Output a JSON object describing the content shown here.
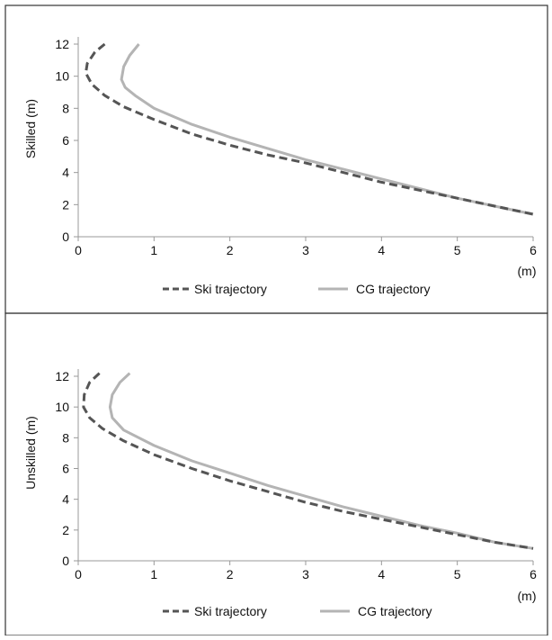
{
  "chart_data": [
    {
      "type": "line",
      "ylabel": "Skilled (m)",
      "xunit": "(m)",
      "xlim": [
        0,
        6
      ],
      "ylim": [
        0,
        12
      ],
      "xticks": [
        "0",
        "1",
        "2",
        "3",
        "4",
        "5",
        "6"
      ],
      "yticks": [
        "0",
        "2",
        "4",
        "6",
        "8",
        "10",
        "12"
      ],
      "legend_position": "bottom",
      "series": [
        {
          "name": "Ski trajectory",
          "style": "dashed",
          "color": "#555555",
          "points": [
            [
              0.35,
              12.0
            ],
            [
              0.22,
              11.5
            ],
            [
              0.12,
              10.8
            ],
            [
              0.1,
              10.2
            ],
            [
              0.18,
              9.5
            ],
            [
              0.35,
              8.8
            ],
            [
              0.6,
              8.1
            ],
            [
              1.0,
              7.3
            ],
            [
              1.5,
              6.4
            ],
            [
              2.0,
              5.7
            ],
            [
              2.5,
              5.1
            ],
            [
              3.0,
              4.6
            ],
            [
              3.5,
              4.0
            ],
            [
              4.0,
              3.4
            ],
            [
              4.5,
              2.9
            ],
            [
              5.0,
              2.4
            ],
            [
              5.5,
              1.9
            ],
            [
              6.0,
              1.4
            ]
          ]
        },
        {
          "name": "CG trajectory",
          "style": "solid",
          "color": "#b4b4b4",
          "points": [
            [
              0.8,
              12.0
            ],
            [
              0.68,
              11.3
            ],
            [
              0.6,
              10.6
            ],
            [
              0.57,
              9.8
            ],
            [
              0.62,
              9.3
            ],
            [
              0.75,
              8.8
            ],
            [
              1.0,
              8.0
            ],
            [
              1.5,
              7.0
            ],
            [
              2.0,
              6.2
            ],
            [
              2.5,
              5.5
            ],
            [
              3.0,
              4.8
            ],
            [
              3.5,
              4.2
            ],
            [
              4.0,
              3.6
            ],
            [
              4.5,
              3.0
            ],
            [
              5.0,
              2.4
            ],
            [
              5.5,
              1.9
            ],
            [
              6.0,
              1.4
            ]
          ]
        }
      ]
    },
    {
      "type": "line",
      "ylabel": "Unskilled (m)",
      "xunit": "(m)",
      "xlim": [
        0,
        6
      ],
      "ylim": [
        0,
        12
      ],
      "xticks": [
        "0",
        "1",
        "2",
        "3",
        "4",
        "5",
        "6"
      ],
      "yticks": [
        "0",
        "2",
        "4",
        "6",
        "8",
        "10",
        "12"
      ],
      "legend_position": "bottom",
      "series": [
        {
          "name": "Ski trajectory",
          "style": "dashed",
          "color": "#555555",
          "points": [
            [
              0.28,
              12.2
            ],
            [
              0.15,
              11.6
            ],
            [
              0.08,
              10.8
            ],
            [
              0.07,
              10.0
            ],
            [
              0.15,
              9.3
            ],
            [
              0.32,
              8.6
            ],
            [
              0.6,
              7.8
            ],
            [
              1.0,
              6.9
            ],
            [
              1.5,
              6.0
            ],
            [
              2.0,
              5.2
            ],
            [
              2.5,
              4.5
            ],
            [
              3.0,
              3.8
            ],
            [
              3.5,
              3.2
            ],
            [
              4.0,
              2.7
            ],
            [
              4.5,
              2.2
            ],
            [
              5.0,
              1.7
            ],
            [
              5.5,
              1.2
            ],
            [
              6.0,
              0.8
            ]
          ]
        },
        {
          "name": "CG trajectory",
          "style": "solid",
          "color": "#b4b4b4",
          "points": [
            [
              0.68,
              12.2
            ],
            [
              0.55,
              11.6
            ],
            [
              0.45,
              10.8
            ],
            [
              0.42,
              10.0
            ],
            [
              0.45,
              9.3
            ],
            [
              0.6,
              8.5
            ],
            [
              1.0,
              7.5
            ],
            [
              1.5,
              6.5
            ],
            [
              2.0,
              5.7
            ],
            [
              2.5,
              4.9
            ],
            [
              3.0,
              4.2
            ],
            [
              3.5,
              3.5
            ],
            [
              4.0,
              2.9
            ],
            [
              4.5,
              2.3
            ],
            [
              5.0,
              1.8
            ],
            [
              5.5,
              1.2
            ],
            [
              6.0,
              0.8
            ]
          ]
        }
      ]
    }
  ]
}
